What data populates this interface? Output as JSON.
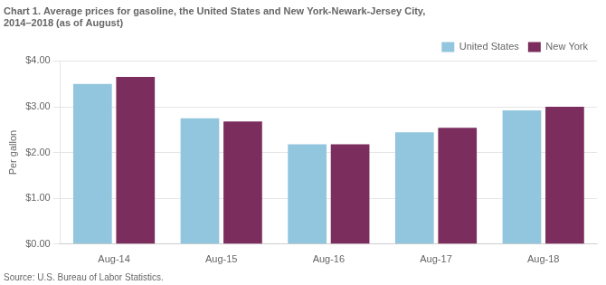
{
  "chart_data": {
    "type": "bar",
    "title": [
      "Chart 1. Average prices for gasoline, the United States and New York-Newark-Jersey City,",
      "2014–2018 (as of August)"
    ],
    "ylabel": "Per gallon",
    "source": "Source: U.S. Bureau of Labor Statistics.",
    "categories": [
      "Aug-14",
      "Aug-15",
      "Aug-16",
      "Aug-17",
      "Aug-18"
    ],
    "series": [
      {
        "name": "United States",
        "color": "#92C5DE",
        "values": [
          3.5,
          2.75,
          2.18,
          2.44,
          2.92
        ]
      },
      {
        "name": "New York",
        "color": "#7B2D5E",
        "values": [
          3.65,
          2.68,
          2.18,
          2.54,
          3.0
        ]
      }
    ],
    "ylim": [
      0.0,
      4.0
    ],
    "yticks": [
      {
        "value": 0,
        "label": "$0.00"
      },
      {
        "value": 1,
        "label": "$1.00"
      },
      {
        "value": 2,
        "label": "$2.00"
      },
      {
        "value": 3,
        "label": "$3.00"
      },
      {
        "value": 4,
        "label": "$4.00"
      }
    ],
    "grid": true,
    "legend": "upper right"
  }
}
